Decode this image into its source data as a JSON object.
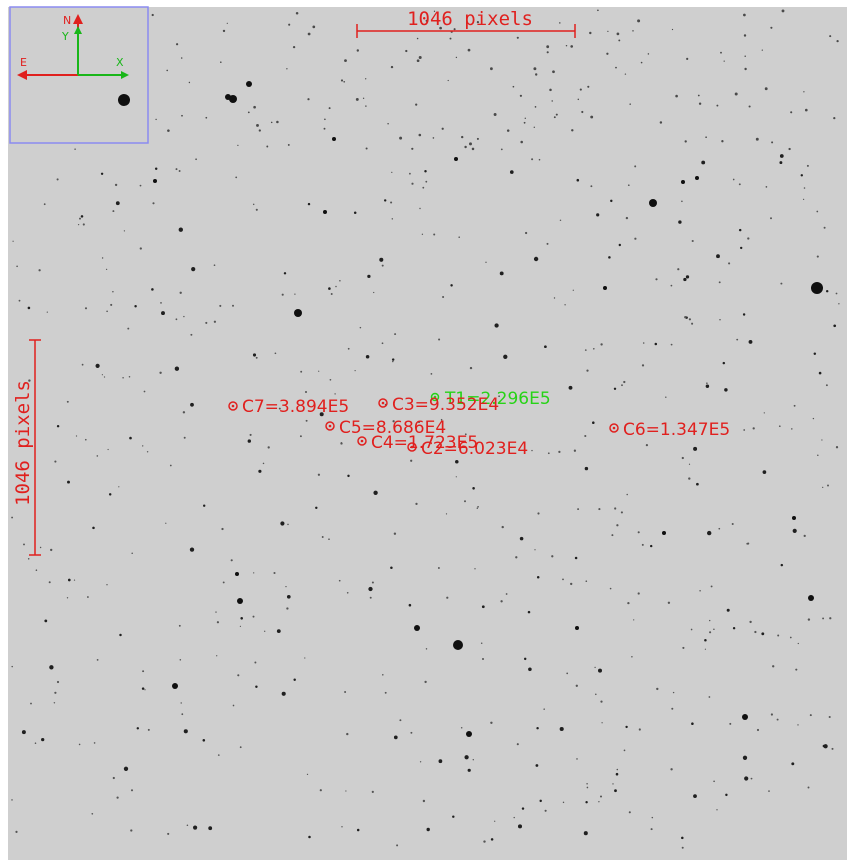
{
  "colors": {
    "background": "#cfcfcf",
    "star": "#101010",
    "comparison": "#e0201e",
    "target": "#27d317",
    "compass_ns": "#e0201e",
    "compass_xy": "#19b619",
    "inset_border": "#8b8bf0"
  },
  "scale_bars": {
    "horizontal_label": "1046 pixels",
    "vertical_label": "1046 pixels"
  },
  "compass": {
    "north_label": "N",
    "east_label": "E",
    "x_label": "X",
    "y_label": "Y"
  },
  "target": {
    "label": "T1=2.296E5"
  },
  "comparison_stars": [
    {
      "id": "C7",
      "label": "C7=3.894E5"
    },
    {
      "id": "C3",
      "label": "C3=9.352E4"
    },
    {
      "id": "C5",
      "label": "C5=8.686E4"
    },
    {
      "id": "C4",
      "label": "C4=1.723E5"
    },
    {
      "id": "C2",
      "label": "C2=6.023E4"
    },
    {
      "id": "C6",
      "label": "C6=1.347E5"
    }
  ]
}
